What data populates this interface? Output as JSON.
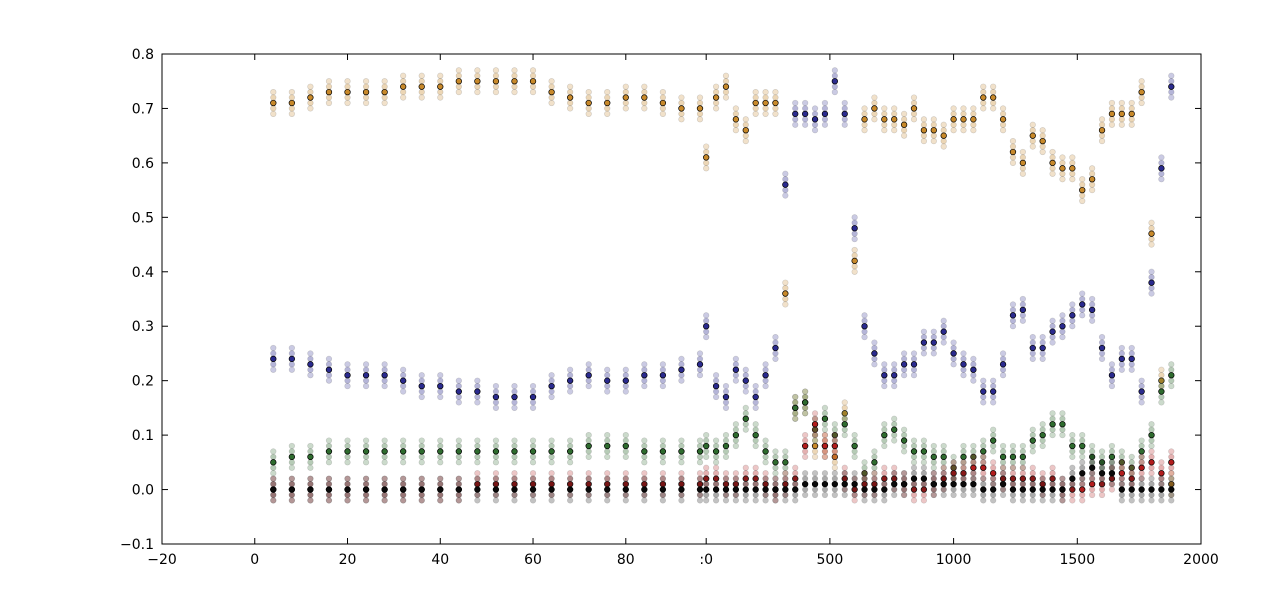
{
  "chart_data": {
    "type": "scatter",
    "title": "",
    "xlabel": "",
    "ylabel": "",
    "grid": false,
    "legend": "none",
    "ylim": [
      -0.1,
      0.8
    ],
    "y_ticks": [
      -0.1,
      0.0,
      0.1,
      0.2,
      0.3,
      0.4,
      0.5,
      0.6,
      0.7,
      0.8
    ],
    "y_tick_labels": [
      "−0.1",
      "0.0",
      "0.1",
      "0.2",
      "0.3",
      "0.4",
      "0.5",
      "0.6",
      "0.7",
      "0.8"
    ],
    "panels": [
      {
        "xlim": [
          -20,
          96
        ],
        "x_ticks": [
          -20,
          0,
          20,
          40,
          60,
          80
        ],
        "x_tick_labels": [
          "−20",
          "0",
          "20",
          "40",
          "60",
          "80"
        ]
      },
      {
        "xlim": [
          -25,
          2000
        ],
        "x_ticks": [
          0,
          500,
          1000,
          1500,
          2000
        ],
        "x_tick_labels": [
          ":0",
          "500",
          "1000",
          "1500",
          "2000"
        ]
      }
    ],
    "series": [
      {
        "color": "#c8892a",
        "panel1": {
          "x": [
            4,
            8,
            12,
            16,
            20,
            24,
            28,
            32,
            36,
            40,
            44,
            48,
            52,
            56,
            60,
            64,
            68,
            72,
            76,
            80,
            84,
            88,
            92,
            96
          ],
          "y": [
            0.71,
            0.71,
            0.72,
            0.73,
            0.73,
            0.73,
            0.73,
            0.74,
            0.74,
            0.74,
            0.75,
            0.75,
            0.75,
            0.75,
            0.75,
            0.73,
            0.72,
            0.71,
            0.71,
            0.72,
            0.72,
            0.71,
            0.7,
            0.7
          ]
        },
        "panel2": {
          "x": [
            0,
            40,
            80,
            120,
            160,
            200,
            240,
            280,
            320,
            360,
            400,
            440,
            480,
            520,
            560,
            600,
            640,
            680,
            720,
            760,
            800,
            840,
            880,
            920,
            960,
            1000,
            1040,
            1080,
            1120,
            1160,
            1200,
            1240,
            1280,
            1320,
            1360,
            1400,
            1440,
            1480,
            1520,
            1560,
            1600,
            1640,
            1680,
            1720,
            1760,
            1800,
            1840,
            1880
          ],
          "y": [
            0.61,
            0.72,
            0.74,
            0.68,
            0.66,
            0.71,
            0.71,
            0.71,
            0.36,
            0.15,
            0.16,
            0.08,
            0.08,
            0.06,
            0.14,
            0.42,
            0.68,
            0.7,
            0.68,
            0.68,
            0.67,
            0.7,
            0.66,
            0.66,
            0.65,
            0.68,
            0.68,
            0.68,
            0.72,
            0.72,
            0.68,
            0.62,
            0.6,
            0.65,
            0.64,
            0.6,
            0.59,
            0.59,
            0.55,
            0.57,
            0.66,
            0.69,
            0.69,
            0.69,
            0.73,
            0.47,
            0.2,
            0.01
          ]
        }
      },
      {
        "color": "#2a2a8e",
        "panel1": {
          "x": [
            4,
            8,
            12,
            16,
            20,
            24,
            28,
            32,
            36,
            40,
            44,
            48,
            52,
            56,
            60,
            64,
            68,
            72,
            76,
            80,
            84,
            88,
            92,
            96
          ],
          "y": [
            0.24,
            0.24,
            0.23,
            0.22,
            0.21,
            0.21,
            0.21,
            0.2,
            0.19,
            0.19,
            0.18,
            0.18,
            0.17,
            0.17,
            0.17,
            0.19,
            0.2,
            0.21,
            0.2,
            0.2,
            0.21,
            0.21,
            0.22,
            0.23
          ]
        },
        "panel2": {
          "x": [
            0,
            40,
            80,
            120,
            160,
            200,
            240,
            280,
            320,
            360,
            400,
            440,
            480,
            520,
            560,
            600,
            640,
            680,
            720,
            760,
            800,
            840,
            880,
            920,
            960,
            1000,
            1040,
            1080,
            1120,
            1160,
            1200,
            1240,
            1280,
            1320,
            1360,
            1400,
            1440,
            1480,
            1520,
            1560,
            1600,
            1640,
            1680,
            1720,
            1760,
            1800,
            1840,
            1880
          ],
          "y": [
            0.3,
            0.19,
            0.17,
            0.22,
            0.2,
            0.17,
            0.21,
            0.26,
            0.56,
            0.69,
            0.69,
            0.68,
            0.69,
            0.75,
            0.69,
            0.48,
            0.3,
            0.25,
            0.21,
            0.21,
            0.23,
            0.23,
            0.27,
            0.27,
            0.29,
            0.25,
            0.23,
            0.22,
            0.18,
            0.18,
            0.23,
            0.32,
            0.33,
            0.26,
            0.26,
            0.29,
            0.3,
            0.32,
            0.34,
            0.33,
            0.26,
            0.21,
            0.24,
            0.24,
            0.18,
            0.38,
            0.59,
            0.74
          ]
        }
      },
      {
        "color": "#2e6b2e",
        "panel1": {
          "x": [
            4,
            8,
            12,
            16,
            20,
            24,
            28,
            32,
            36,
            40,
            44,
            48,
            52,
            56,
            60,
            64,
            68,
            72,
            76,
            80,
            84,
            88,
            92,
            96
          ],
          "y": [
            0.05,
            0.06,
            0.06,
            0.07,
            0.07,
            0.07,
            0.07,
            0.07,
            0.07,
            0.07,
            0.07,
            0.07,
            0.07,
            0.07,
            0.07,
            0.07,
            0.07,
            0.08,
            0.08,
            0.08,
            0.07,
            0.07,
            0.07,
            0.07
          ]
        },
        "panel2": {
          "x": [
            0,
            40,
            80,
            120,
            160,
            200,
            240,
            280,
            320,
            360,
            400,
            440,
            480,
            520,
            560,
            600,
            640,
            680,
            720,
            760,
            800,
            840,
            880,
            920,
            960,
            1000,
            1040,
            1080,
            1120,
            1160,
            1200,
            1240,
            1280,
            1320,
            1360,
            1400,
            1440,
            1480,
            1520,
            1560,
            1600,
            1640,
            1680,
            1720,
            1760,
            1800,
            1840,
            1880
          ],
          "y": [
            0.08,
            0.07,
            0.08,
            0.1,
            0.13,
            0.1,
            0.07,
            0.05,
            0.05,
            0.15,
            0.16,
            0.11,
            0.13,
            0.1,
            0.12,
            0.08,
            0.03,
            0.05,
            0.1,
            0.11,
            0.09,
            0.07,
            0.07,
            0.06,
            0.06,
            0.04,
            0.06,
            0.06,
            0.07,
            0.09,
            0.06,
            0.06,
            0.06,
            0.09,
            0.1,
            0.12,
            0.12,
            0.08,
            0.08,
            0.06,
            0.05,
            0.06,
            0.05,
            0.04,
            0.07,
            0.1,
            0.18,
            0.21
          ]
        }
      },
      {
        "color": "#b21c1c",
        "panel1": {
          "x": [
            4,
            8,
            12,
            16,
            20,
            24,
            28,
            32,
            36,
            40,
            44,
            48,
            52,
            56,
            60,
            64,
            68,
            72,
            76,
            80,
            84,
            88,
            92,
            96
          ],
          "y": [
            0.0,
            0.0,
            0.0,
            0.0,
            0.0,
            0.0,
            0.0,
            0.0,
            0.0,
            0.0,
            0.0,
            0.01,
            0.01,
            0.01,
            0.01,
            0.01,
            0.01,
            0.01,
            0.01,
            0.01,
            0.01,
            0.01,
            0.01,
            0.01
          ]
        },
        "panel2": {
          "x": [
            0,
            40,
            80,
            120,
            160,
            200,
            240,
            280,
            320,
            360,
            400,
            440,
            480,
            520,
            560,
            600,
            640,
            680,
            720,
            760,
            800,
            840,
            880,
            920,
            960,
            1000,
            1040,
            1080,
            1120,
            1160,
            1200,
            1240,
            1280,
            1320,
            1360,
            1400,
            1440,
            1480,
            1520,
            1560,
            1600,
            1640,
            1680,
            1720,
            1760,
            1800,
            1840,
            1880
          ],
          "y": [
            0.02,
            0.02,
            0.01,
            0.01,
            0.02,
            0.02,
            0.01,
            0.0,
            0.01,
            0.02,
            0.08,
            0.12,
            0.08,
            0.08,
            0.02,
            0.0,
            0.01,
            0.01,
            0.02,
            0.02,
            0.01,
            0.0,
            0.0,
            0.01,
            0.02,
            0.03,
            0.03,
            0.04,
            0.04,
            0.03,
            0.02,
            0.02,
            0.02,
            0.02,
            0.01,
            0.02,
            0.0,
            0.0,
            0.0,
            0.01,
            0.01,
            0.02,
            0.03,
            0.02,
            0.04,
            0.05,
            0.03,
            0.05
          ]
        }
      },
      {
        "color": "#0a0a0a",
        "panel1": {
          "x": [
            4,
            8,
            12,
            16,
            20,
            24,
            28,
            32,
            36,
            40,
            44,
            48,
            52,
            56,
            60,
            64,
            68,
            72,
            76,
            80,
            84,
            88,
            92,
            96
          ],
          "y": [
            0.0,
            0.0,
            0.0,
            0.0,
            0.0,
            0.0,
            0.0,
            0.0,
            0.0,
            0.0,
            0.0,
            0.0,
            0.0,
            0.0,
            0.0,
            0.0,
            0.0,
            0.0,
            0.0,
            0.0,
            0.0,
            0.0,
            0.0,
            0.0
          ]
        },
        "panel2": {
          "x": [
            0,
            40,
            80,
            120,
            160,
            200,
            240,
            280,
            320,
            360,
            400,
            440,
            480,
            520,
            560,
            600,
            640,
            680,
            720,
            760,
            800,
            840,
            880,
            920,
            960,
            1000,
            1040,
            1080,
            1120,
            1160,
            1200,
            1240,
            1280,
            1320,
            1360,
            1400,
            1440,
            1480,
            1520,
            1560,
            1600,
            1640,
            1680,
            1720,
            1760,
            1800,
            1840,
            1880
          ],
          "y": [
            0.0,
            0.0,
            0.0,
            0.0,
            0.0,
            0.0,
            0.0,
            0.0,
            0.0,
            0.0,
            0.01,
            0.01,
            0.01,
            0.01,
            0.01,
            0.01,
            0.0,
            0.0,
            0.0,
            0.01,
            0.01,
            0.02,
            0.02,
            0.01,
            0.01,
            0.01,
            0.01,
            0.01,
            0.0,
            0.0,
            0.01,
            0.0,
            0.0,
            0.0,
            0.0,
            0.0,
            0.0,
            0.02,
            0.03,
            0.04,
            0.03,
            0.03,
            0.0,
            0.0,
            0.0,
            0.0,
            0.0,
            0.0
          ]
        }
      }
    ]
  }
}
